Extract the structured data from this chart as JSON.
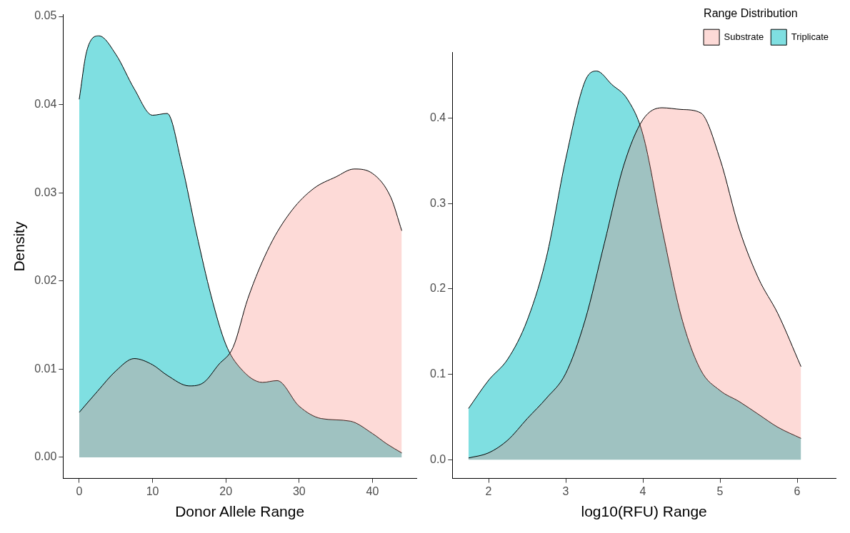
{
  "chart_data": [
    {
      "type": "area",
      "xlabel": "Donor Allele Range",
      "ylabel": "Density",
      "xlim": [
        -2.2,
        46.0
      ],
      "ylim": [
        -0.0024,
        0.0502
      ],
      "xticks": [
        0,
        10,
        20,
        30,
        40
      ],
      "yticks": [
        {
          "value": 0,
          "label": "0.00"
        },
        {
          "value": 0.01,
          "label": "0.01"
        },
        {
          "value": 0.02,
          "label": "0.02"
        },
        {
          "value": 0.03,
          "label": "0.03"
        },
        {
          "value": 0.04,
          "label": "0.04"
        },
        {
          "value": 0.05,
          "label": "0.05"
        }
      ],
      "grid": false,
      "legend": false,
      "series": [
        {
          "color": "#f8766d",
          "x": [
            0,
            2.5,
            5,
            7.5,
            10,
            12,
            15,
            17,
            19,
            21,
            23,
            26,
            29,
            32,
            35,
            37.5,
            40,
            42.5,
            44
          ],
          "values": [
            0.0051,
            0.0075,
            0.0098,
            0.0112,
            0.0105,
            0.0093,
            0.0081,
            0.0085,
            0.0105,
            0.0125,
            0.018,
            0.024,
            0.028,
            0.0305,
            0.0318,
            0.0327,
            0.0322,
            0.0295,
            0.0257
          ]
        },
        {
          "color": "#00bfc4",
          "x": [
            0,
            1,
            2.7,
            5,
            7.5,
            10,
            12,
            14,
            16,
            18,
            20,
            22,
            25,
            27,
            30,
            33,
            37,
            40,
            42,
            44
          ],
          "values": [
            0.0406,
            0.046,
            0.0478,
            0.0457,
            0.0418,
            0.0388,
            0.039,
            0.0332,
            0.0254,
            0.0183,
            0.0128,
            0.0101,
            0.0085,
            0.0087,
            0.0058,
            0.0044,
            0.0041,
            0.0027,
            0.0015,
            0.0005
          ]
        }
      ]
    },
    {
      "type": "area",
      "xlabel": "log10(RFU) Range",
      "legend_title": "Range Distribution",
      "xlim": [
        1.53,
        6.5
      ],
      "ylim": [
        -0.022,
        0.477
      ],
      "xticks": [
        2,
        3,
        4,
        5,
        6
      ],
      "yticks": [
        {
          "value": 0,
          "label": "0.0"
        },
        {
          "value": 0.1,
          "label": "0.1"
        },
        {
          "value": 0.2,
          "label": "0.2"
        },
        {
          "value": 0.3,
          "label": "0.3"
        },
        {
          "value": 0.4,
          "label": "0.4"
        }
      ],
      "grid": false,
      "legend": "top right",
      "series": [
        {
          "name": "Substrate",
          "color": "#f8766d",
          "x": [
            1.74,
            2,
            2.25,
            2.5,
            2.75,
            3,
            3.25,
            3.5,
            3.75,
            4,
            4.25,
            4.5,
            4.75,
            5,
            5.25,
            5.5,
            5.75,
            6.05
          ],
          "values": [
            0.002,
            0.008,
            0.023,
            0.048,
            0.072,
            0.101,
            0.163,
            0.253,
            0.344,
            0.398,
            0.412,
            0.41,
            0.406,
            0.352,
            0.27,
            0.212,
            0.171,
            0.109
          ]
        },
        {
          "name": "Triplicate",
          "color": "#00bfc4",
          "x": [
            1.74,
            2,
            2.25,
            2.5,
            2.75,
            3,
            3.25,
            3.4,
            3.6,
            3.8,
            4,
            4.25,
            4.5,
            4.75,
            5,
            5.25,
            5.5,
            5.75,
            6.05
          ],
          "values": [
            0.06,
            0.093,
            0.118,
            0.163,
            0.237,
            0.352,
            0.443,
            0.455,
            0.439,
            0.422,
            0.381,
            0.27,
            0.167,
            0.105,
            0.081,
            0.068,
            0.053,
            0.038,
            0.025
          ]
        }
      ]
    }
  ]
}
